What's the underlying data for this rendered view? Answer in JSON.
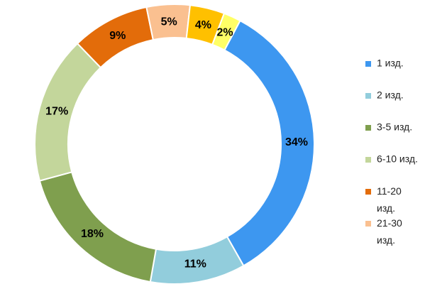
{
  "chart_data": {
    "type": "doughnut",
    "categories": [
      "1 изд.",
      "2 изд.",
      "3-5 изд.",
      "6-10 изд.",
      "11-20 изд.",
      "21-30 изд.",
      null,
      null
    ],
    "values": [
      34,
      11,
      18,
      17,
      9,
      5,
      4,
      2
    ],
    "value_labels": [
      "34%",
      "11%",
      "18%",
      "17%",
      "9%",
      "5%",
      "4%",
      "2%"
    ],
    "colors": [
      "#3d97f0",
      "#92cddc",
      "#7f9f4e",
      "#c3d69b",
      "#e36c0a",
      "#fac090",
      "#ffc000",
      "#ffff66"
    ],
    "legend": "right"
  }
}
